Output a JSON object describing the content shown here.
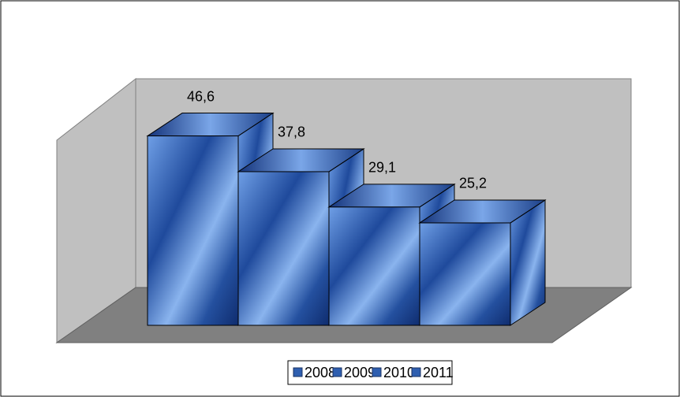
{
  "chart_data": {
    "type": "bar",
    "series": [
      {
        "name": "2008",
        "values": [
          46.6
        ],
        "value_labels": [
          "46,6"
        ],
        "color": "#2f5fb0"
      },
      {
        "name": "2009",
        "values": [
          37.8
        ],
        "value_labels": [
          "37,8"
        ],
        "color": "#2f5fb0"
      },
      {
        "name": "2010",
        "values": [
          29.1
        ],
        "value_labels": [
          "29,1"
        ],
        "color": "#2f5fb0"
      },
      {
        "name": "2011",
        "values": [
          25.2
        ],
        "value_labels": [
          "25,2"
        ],
        "color": "#2f5fb0"
      }
    ],
    "ylim": [
      0,
      50
    ],
    "legend": "bottom"
  }
}
